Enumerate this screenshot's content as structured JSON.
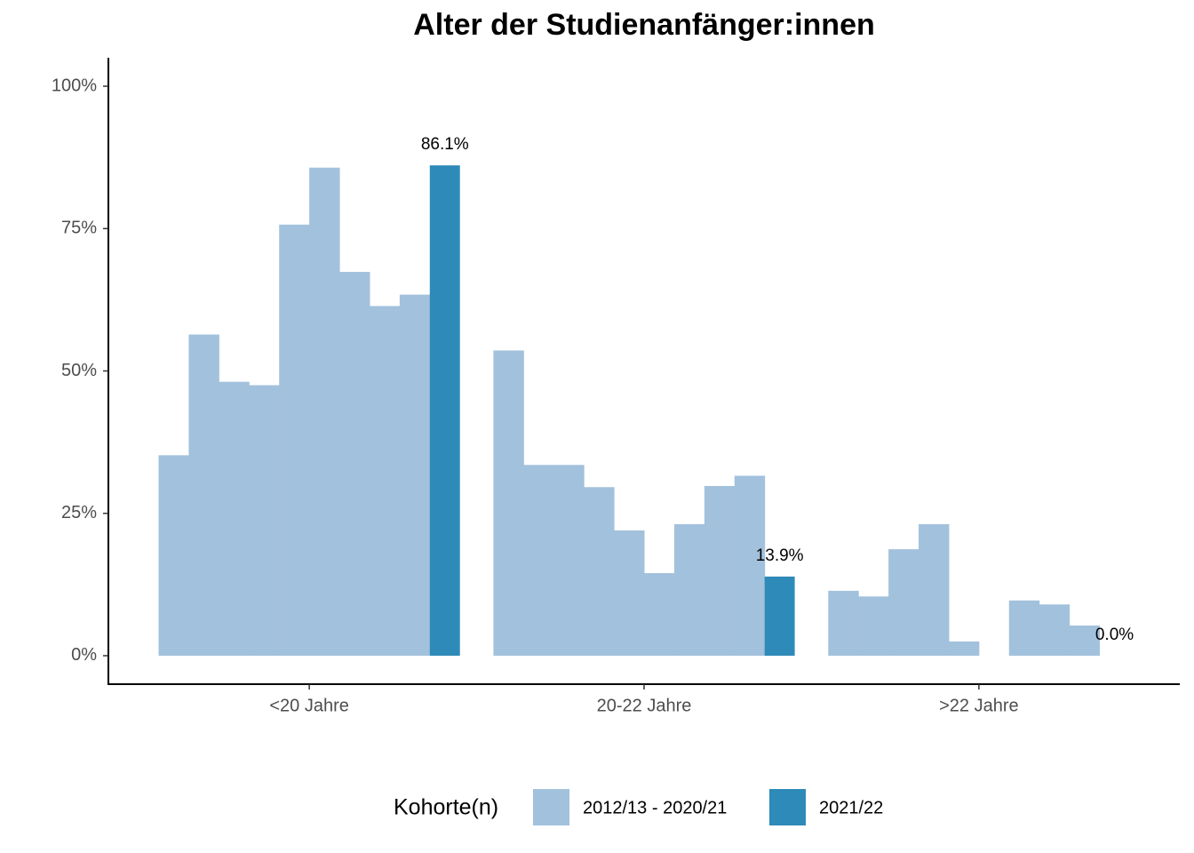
{
  "chart_data": {
    "type": "bar",
    "title": "Alter der Studienanfänger:innen",
    "categories": [
      "<20 Jahre",
      "20-22 Jahre",
      ">22 Jahre"
    ],
    "series": [
      {
        "name": "2012/13 - 2020/21",
        "color": "#a2c1dd",
        "values": [
          [
            35.2,
            56.4,
            48.1,
            47.5,
            75.7,
            85.7,
            67.4,
            61.4,
            63.4
          ],
          [
            53.6,
            33.5,
            33.5,
            29.6,
            22.0,
            14.5,
            23.1,
            29.8,
            31.6
          ],
          [
            11.4,
            10.4,
            18.7,
            23.1,
            2.5,
            null,
            9.7,
            9.0,
            5.3
          ]
        ]
      },
      {
        "name": "2021/22",
        "color": "#2e8ab8",
        "values": [
          86.1,
          13.9,
          0.0
        ],
        "value_labels": [
          "86.1%",
          "13.9%",
          "0.0%"
        ]
      }
    ],
    "ylim": [
      -5,
      105
    ],
    "yticks": [
      {
        "value": 0,
        "label": "0%"
      },
      {
        "value": 25,
        "label": "25%"
      },
      {
        "value": 50,
        "label": "50%"
      },
      {
        "value": 75,
        "label": "75%"
      },
      {
        "value": 100,
        "label": "100%"
      }
    ],
    "legend_title": "Kohorte(n)",
    "legend_position": "bottom",
    "grid": false
  }
}
